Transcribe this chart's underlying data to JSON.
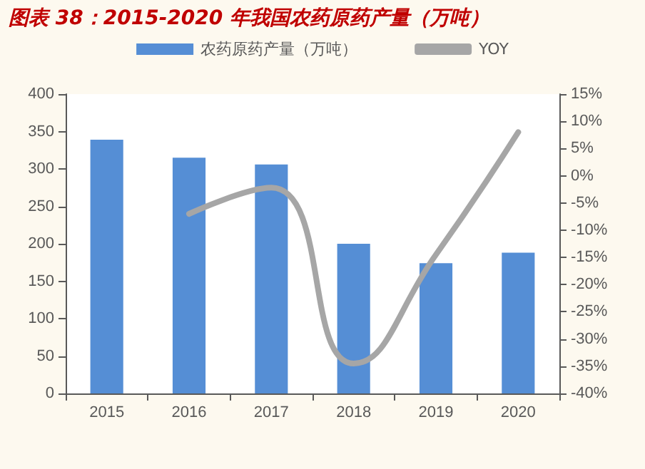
{
  "chart_data": {
    "type": "bar",
    "title": "图表 38：2015-2020 年我国农药原药产量（万吨）",
    "categories": [
      "2015",
      "2016",
      "2017",
      "2018",
      "2019",
      "2020"
    ],
    "series": [
      {
        "name": "农药原药产量（万吨）",
        "color": "#558ed5",
        "values": [
          339,
          315,
          306,
          200,
          174,
          188
        ]
      },
      {
        "name": "YOY",
        "type": "line",
        "axis": "y2",
        "color": "#a6a6a6",
        "values": [
          null,
          -7,
          -2.2,
          -34.5,
          -14.5,
          8
        ]
      }
    ],
    "ylim": [
      0,
      400
    ],
    "yticks": [
      0,
      50,
      100,
      150,
      200,
      250,
      300,
      350,
      400
    ],
    "y2lim": [
      -40,
      15
    ],
    "y2ticks": [
      {
        "value": -40,
        "label": "-40%"
      },
      {
        "value": -35,
        "label": "-35%"
      },
      {
        "value": -30,
        "label": "-30%"
      },
      {
        "value": -25,
        "label": "-25%"
      },
      {
        "value": -20,
        "label": "-20%"
      },
      {
        "value": -15,
        "label": "-15%"
      },
      {
        "value": -10,
        "label": "-10%"
      },
      {
        "value": -5,
        "label": "-5%"
      },
      {
        "value": 0,
        "label": "0%"
      },
      {
        "value": 5,
        "label": "5%"
      },
      {
        "value": 10,
        "label": "10%"
      },
      {
        "value": 15,
        "label": "15%"
      }
    ],
    "legend": "top",
    "marker": "none",
    "line_style": "solid"
  }
}
